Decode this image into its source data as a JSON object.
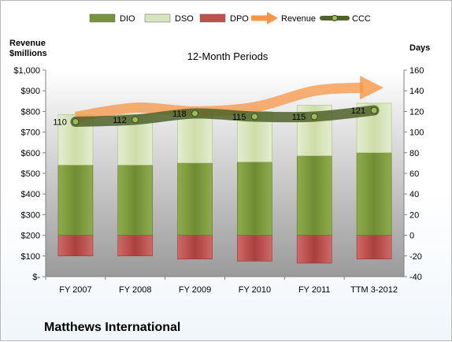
{
  "chart_data": {
    "type": "bar",
    "title": "12-Month Periods",
    "company": "Matthews International",
    "left_axis_label": [
      "Revenue",
      "$millions"
    ],
    "right_axis_label": "Days",
    "categories": [
      "FY 2007",
      "FY 2008",
      "FY 2009",
      "FY 2010",
      "FY 2011",
      "TTM 3-2012"
    ],
    "left_axis": {
      "min": 0,
      "max": 1000,
      "step": 100,
      "tick_labels": [
        "$-",
        "$100",
        "$200",
        "$300",
        "$400",
        "$500",
        "$600",
        "$700",
        "$800",
        "$900",
        "$1,000"
      ]
    },
    "right_axis": {
      "min": -40,
      "max": 160,
      "step": 20,
      "tick_labels": [
        "-40",
        "-20",
        "0",
        "20",
        "40",
        "60",
        "80",
        "100",
        "120",
        "140",
        "160"
      ]
    },
    "series": [
      {
        "name": "DIO",
        "axis": "right",
        "color": "#77933c",
        "values": [
          68,
          68,
          70,
          71,
          77,
          80
        ]
      },
      {
        "name": "DSO",
        "axis": "right",
        "color": "#d7e4bd",
        "values": [
          49,
          49,
          50,
          49,
          49,
          48
        ]
      },
      {
        "name": "DPO",
        "axis": "right",
        "color": "#c0504d",
        "values": [
          -20,
          -20,
          -23,
          -25,
          -27,
          -23
        ]
      },
      {
        "name": "Revenue",
        "axis": "left",
        "color": "#f79646",
        "values": [
          774,
          818,
          800,
          821,
          900,
          915
        ]
      },
      {
        "name": "CCC",
        "axis": "right",
        "color": "#4f6228",
        "values": [
          110,
          112,
          118,
          115,
          115,
          121
        ]
      }
    ],
    "ccc_labels": [
      "110",
      "112",
      "118",
      "115",
      "115",
      "121"
    ],
    "legend_position": "top",
    "grid": false
  }
}
